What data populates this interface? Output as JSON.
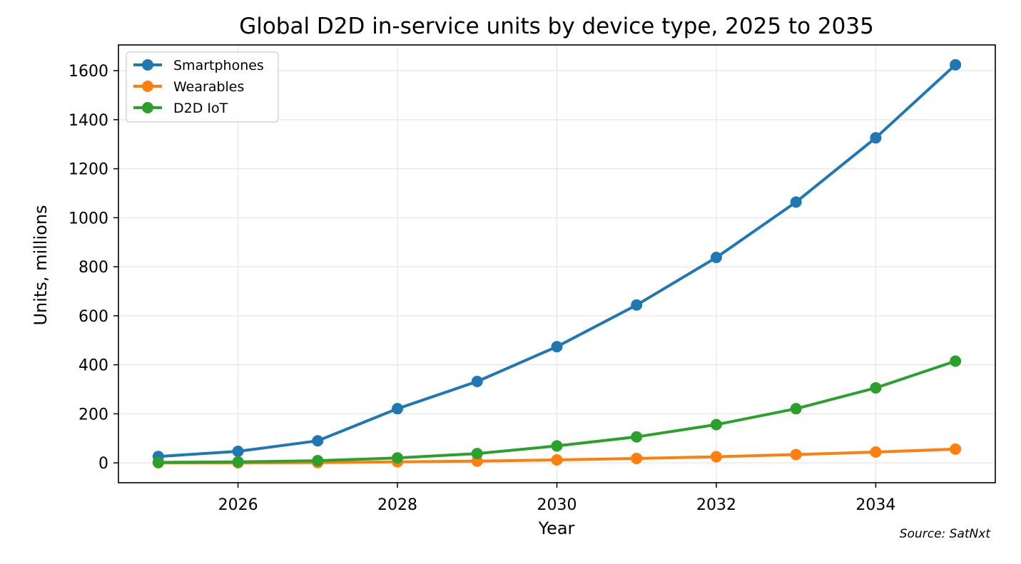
{
  "chart_data": {
    "type": "line",
    "title": "Global D2D in-service units by device type, 2025 to 2035",
    "xlabel": "Year",
    "ylabel": "Units, millions",
    "x": [
      2025,
      2026,
      2027,
      2028,
      2029,
      2030,
      2031,
      2032,
      2033,
      2034,
      2035
    ],
    "xlim": [
      2024.5,
      2035.5
    ],
    "ylim": [
      -81,
      1705
    ],
    "xticks": [
      2026,
      2028,
      2030,
      2032,
      2034
    ],
    "xtick_labels": [
      "2026",
      "2028",
      "2030",
      "2032",
      "2034"
    ],
    "yticks": [
      0,
      200,
      400,
      600,
      800,
      1000,
      1200,
      1400,
      1600
    ],
    "ytick_labels": [
      "0",
      "200",
      "400",
      "600",
      "800",
      "1000",
      "1200",
      "1400",
      "1600"
    ],
    "grid": true,
    "legend_position": "upper-left",
    "series": [
      {
        "name": "Smartphones",
        "color": "#1f77b4",
        "values": [
          26,
          47,
          90,
          221,
          332,
          474,
          644,
          838,
          1064,
          1326,
          1624
        ]
      },
      {
        "name": "Wearables",
        "color": "#ff7f0e",
        "values": [
          0,
          0,
          1,
          4,
          7,
          12,
          18,
          25,
          34,
          44,
          56
        ]
      },
      {
        "name": "D2D IoT",
        "color": "#2ca02c",
        "values": [
          2,
          4,
          9,
          20,
          38,
          69,
          106,
          156,
          221,
          306,
          415
        ]
      }
    ],
    "annotation": "Source: SatNxt"
  }
}
